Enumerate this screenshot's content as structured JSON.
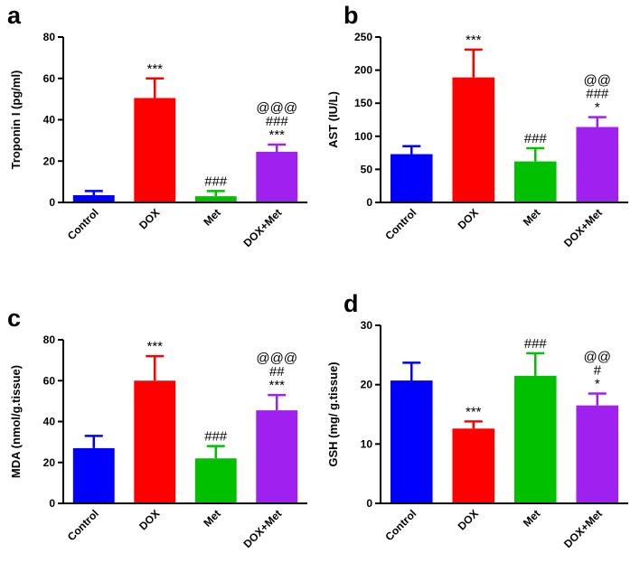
{
  "chart_data": [
    {
      "panel": "a",
      "type": "bar",
      "categories": [
        "Control",
        "DOX",
        "Met",
        "DOX+Met"
      ],
      "values": [
        3.5,
        50.5,
        3,
        24.5
      ],
      "errors": [
        2,
        9.5,
        2.5,
        3.5
      ],
      "colors": [
        "#0000ff",
        "#ff0000",
        "#00c000",
        "#a020f0"
      ],
      "ylabel": "Troponin I (pg/ml)",
      "ylim": [
        0,
        80
      ],
      "yticks": [
        0,
        20,
        40,
        60,
        80
      ],
      "annotations": [
        [],
        [
          "***"
        ],
        [
          "###"
        ],
        [
          "@@@",
          "###",
          "***"
        ]
      ]
    },
    {
      "panel": "b",
      "type": "bar",
      "categories": [
        "Control",
        "DOX",
        "Met",
        "DOX+Met"
      ],
      "values": [
        73,
        189,
        62,
        114
      ],
      "errors": [
        12,
        42,
        20,
        15
      ],
      "colors": [
        "#0000ff",
        "#ff0000",
        "#00c000",
        "#a020f0"
      ],
      "ylabel": "AST (IU/L)",
      "ylim": [
        0,
        250
      ],
      "yticks": [
        0,
        50,
        100,
        150,
        200,
        250
      ],
      "annotations": [
        [],
        [
          "***"
        ],
        [
          "###"
        ],
        [
          "@@",
          "###",
          "*"
        ]
      ]
    },
    {
      "panel": "c",
      "type": "bar",
      "categories": [
        "Control",
        "DOX",
        "Met",
        "DOX+Met"
      ],
      "values": [
        27,
        60,
        22,
        45.5
      ],
      "errors": [
        6,
        12,
        6,
        7.5
      ],
      "colors": [
        "#0000ff",
        "#ff0000",
        "#00c000",
        "#a020f0"
      ],
      "ylabel": "MDA (nmol/g.tissue)",
      "ylim": [
        0,
        80
      ],
      "yticks": [
        0,
        20,
        40,
        60,
        80
      ],
      "annotations": [
        [],
        [
          "***"
        ],
        [
          "###"
        ],
        [
          "@@@",
          "##",
          "***"
        ]
      ]
    },
    {
      "panel": "d",
      "type": "bar",
      "categories": [
        "Control",
        "DOX",
        "Met",
        "DOX+Met"
      ],
      "values": [
        20.7,
        12.6,
        21.5,
        16.5
      ],
      "errors": [
        3,
        1.2,
        3.8,
        2
      ],
      "colors": [
        "#0000ff",
        "#ff0000",
        "#00c000",
        "#a020f0"
      ],
      "ylabel": "GSH (mg/ g.tissue)",
      "ylim": [
        0,
        30
      ],
      "yticks": [
        0,
        10,
        20,
        30
      ],
      "annotations": [
        [],
        [
          "***"
        ],
        [
          "###"
        ],
        [
          "@@",
          "#",
          "*"
        ]
      ]
    }
  ]
}
